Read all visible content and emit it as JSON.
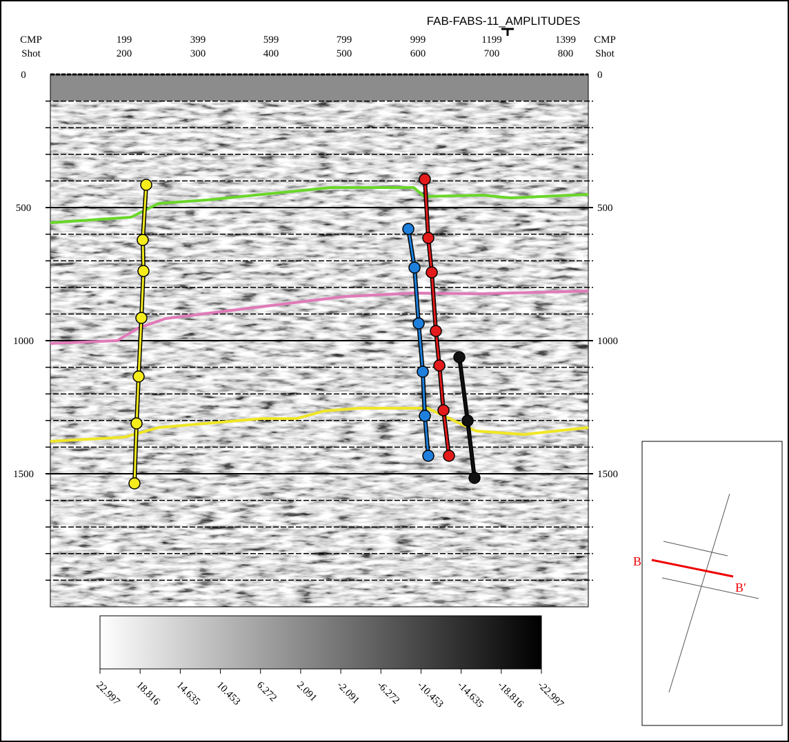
{
  "figure": {
    "title": "FAB-FABS-11_AMPLITUDES",
    "top_axis": {
      "row1_label": "CMP",
      "row2_label": "Shot",
      "cmp": [
        199,
        399,
        599,
        799,
        999,
        1199,
        1399
      ],
      "shot": [
        200,
        300,
        400,
        500,
        600,
        700,
        800
      ]
    },
    "side_axis": {
      "ticks": [
        0,
        500,
        1000,
        1500
      ]
    },
    "colorbar": {
      "labels": [
        "22.997",
        "18.816",
        "14.635",
        "10.453",
        "6.272",
        "2.091",
        "-2.091",
        "-6.272",
        "-10.453",
        "-14.635",
        "-18.816",
        "-22.997"
      ]
    },
    "inset_map": {
      "start_label": "B",
      "end_label": "B′"
    }
  }
}
